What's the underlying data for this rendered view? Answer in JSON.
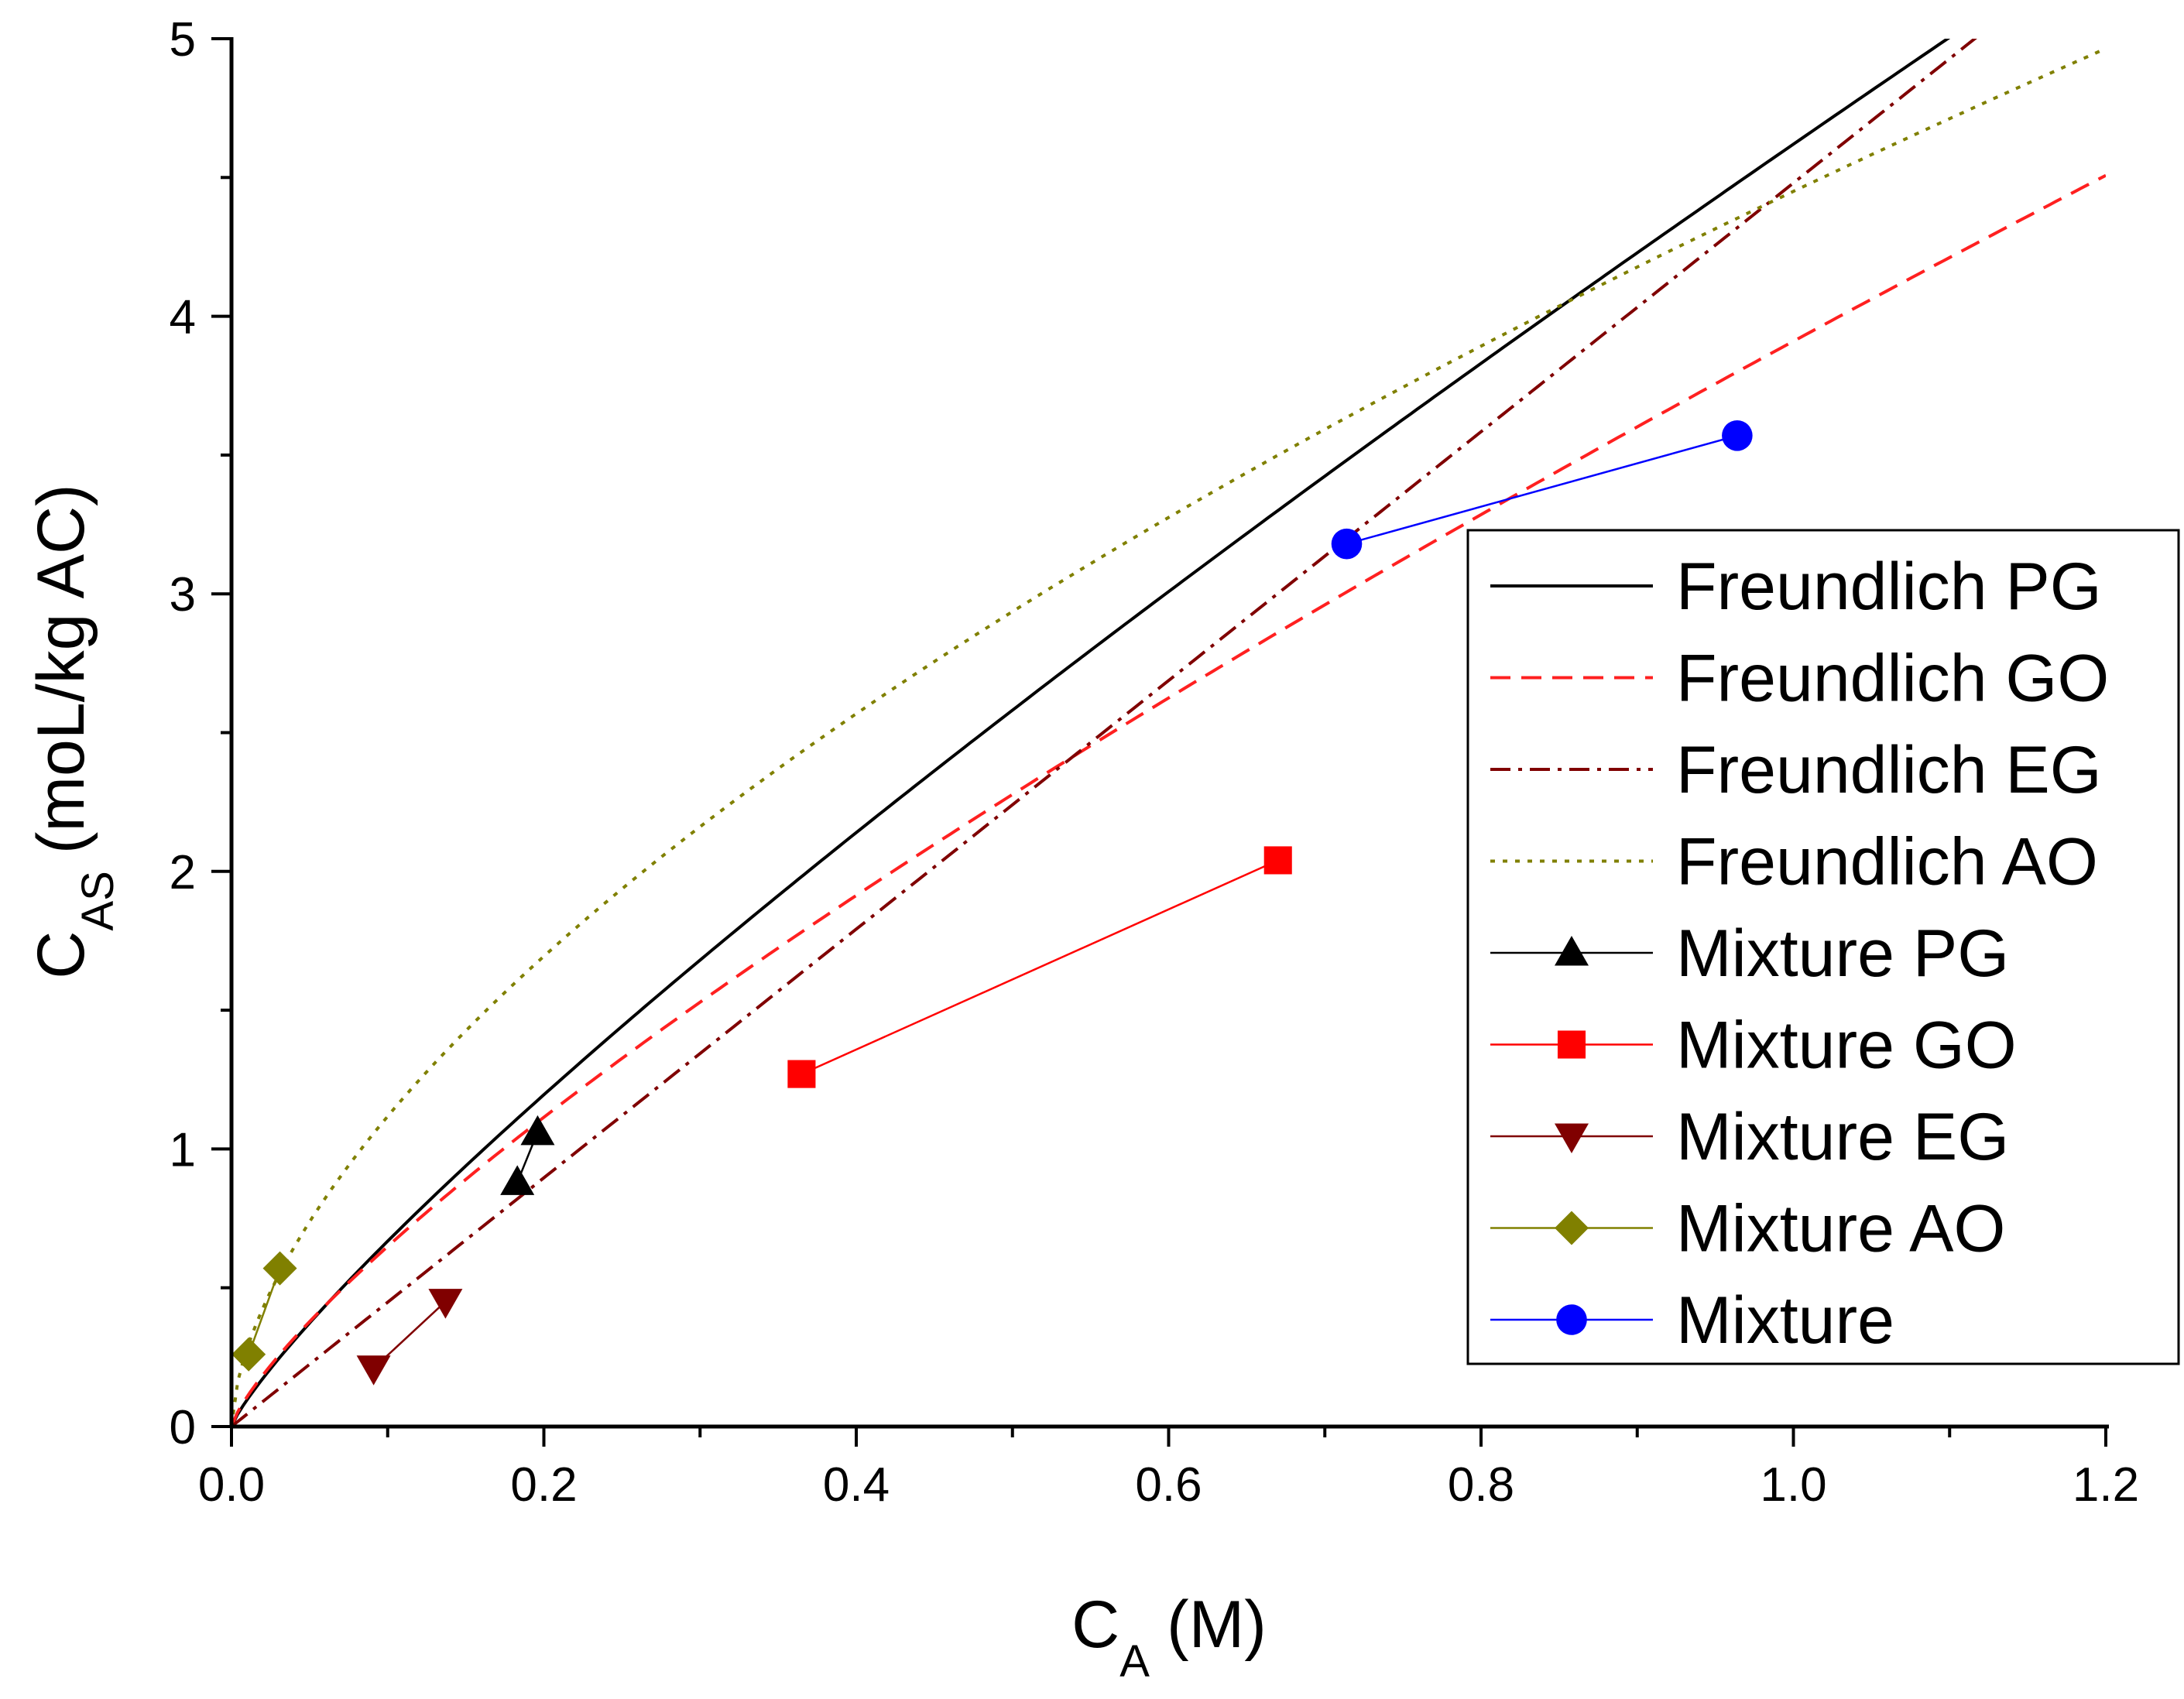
{
  "chart_data": {
    "type": "line",
    "title": "",
    "xlabel": {
      "main": "C",
      "sub": "A",
      "unit": "(M)"
    },
    "ylabel": {
      "main": "C",
      "sub": "AS",
      "unit": "(moL/kg AC)"
    },
    "xlim": [
      0,
      1.2
    ],
    "ylim": [
      0,
      5
    ],
    "xticks": [
      0.0,
      0.2,
      0.4,
      0.6,
      0.8,
      1.0,
      1.2
    ],
    "xtick_labels": [
      "0.0",
      "0.2",
      "0.4",
      "0.6",
      "0.8",
      "1.0",
      "1.2"
    ],
    "yticks": [
      0,
      1,
      2,
      3,
      4,
      5
    ],
    "ytick_labels": [
      "0",
      "1",
      "2",
      "3",
      "4",
      "5"
    ],
    "grid": false,
    "legend_position": "center-right",
    "curves": [
      {
        "name": "Freundlich PG",
        "color": "#000000",
        "dash": "solid",
        "K": 4.62,
        "n": 0.84,
        "x_max": 1.1
      },
      {
        "name": "Freundlich GO",
        "color": "#ff2020",
        "dash": "dashed",
        "K": 3.91,
        "n": 0.78,
        "x_max": 1.2
      },
      {
        "name": "Freundlich EG",
        "color": "#800000",
        "dash": "dashdot",
        "K": 4.48,
        "n": 1.0,
        "x_max": 1.12
      },
      {
        "name": "Freundlich AO",
        "color": "#808000",
        "dash": "dotted",
        "K": 4.45,
        "n": 0.6,
        "x_max": 1.2
      }
    ],
    "series": [
      {
        "name": "Mixture PG",
        "color": "#000000",
        "marker": "triangle-up",
        "x": [
          0.183,
          0.196
        ],
        "y": [
          0.88,
          1.06
        ]
      },
      {
        "name": "Mixture GO",
        "color": "#ff0000",
        "marker": "square",
        "x": [
          0.365,
          0.67
        ],
        "y": [
          1.27,
          2.04
        ]
      },
      {
        "name": "Mixture EG",
        "color": "#800000",
        "marker": "triangle-down",
        "x": [
          0.091,
          0.137
        ],
        "y": [
          0.21,
          0.45
        ]
      },
      {
        "name": "Mixture AO",
        "color": "#808000",
        "marker": "diamond",
        "x": [
          0.011,
          0.031
        ],
        "y": [
          0.26,
          0.57
        ]
      },
      {
        "name": "Mixture",
        "color": "#0000ff",
        "marker": "circle",
        "x": [
          0.714,
          0.964
        ],
        "y": [
          3.18,
          3.57
        ]
      }
    ]
  }
}
